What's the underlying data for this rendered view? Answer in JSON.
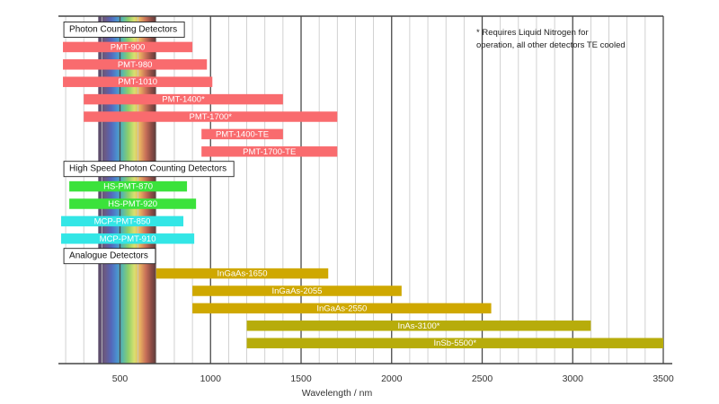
{
  "chart_data": {
    "type": "bar",
    "orientation": "horizontal",
    "title": "",
    "xlabel": "Wavelength / nm",
    "ylabel": "",
    "xlim": [
      160,
      3500
    ],
    "xticks": [
      500,
      1000,
      1500,
      2000,
      2500,
      3000,
      3500
    ],
    "grid": true,
    "grid_step": 100,
    "visible_spectrum_band": [
      380,
      700
    ],
    "note": {
      "lines": [
        "* Requires Liquid Nitrogen for",
        "operation, all other detectors TE cooled"
      ],
      "placement": "top-right"
    },
    "groups": [
      {
        "label": "Photon Counting Detectors",
        "color": "#f96b6e",
        "bars": [
          {
            "name": "PMT-900",
            "start": 185,
            "end": 900
          },
          {
            "name": "PMT-980",
            "start": 185,
            "end": 980
          },
          {
            "name": "PMT-1010",
            "start": 185,
            "end": 1010
          },
          {
            "name": "PMT-1400*",
            "start": 300,
            "end": 1400
          },
          {
            "name": "PMT-1700*",
            "start": 300,
            "end": 1700
          },
          {
            "name": "PMT-1400-TE",
            "start": 950,
            "end": 1400
          },
          {
            "name": "PMT-1700-TE",
            "start": 950,
            "end": 1700
          }
        ]
      },
      {
        "label": "High Speed Photon Counting Detectors",
        "colors": [
          "#3be23b",
          "#3be23b",
          "#33e6e6",
          "#33e6e6"
        ],
        "bars": [
          {
            "name": "HS-PMT-870",
            "start": 220,
            "end": 870
          },
          {
            "name": "HS-PMT-920",
            "start": 220,
            "end": 920
          },
          {
            "name": "MCP-PMT-850",
            "start": 175,
            "end": 850
          },
          {
            "name": "MCP-PMT-910",
            "start": 175,
            "end": 910
          }
        ]
      },
      {
        "label": "Analogue Detectors",
        "colors": [
          "#cfa800",
          "#cfa800",
          "#cfa800",
          "#b7ac0b",
          "#b7ac0b"
        ],
        "bars": [
          {
            "name": "InGaAs-1650",
            "start": 700,
            "end": 1650
          },
          {
            "name": "InGaAs-2055",
            "start": 900,
            "end": 2055
          },
          {
            "name": "InGaAs-2550",
            "start": 900,
            "end": 2550
          },
          {
            "name": "InAs-3100*",
            "start": 1200,
            "end": 3100
          },
          {
            "name": "InSb-5500*",
            "start": 1200,
            "end": 3500
          }
        ]
      }
    ]
  }
}
